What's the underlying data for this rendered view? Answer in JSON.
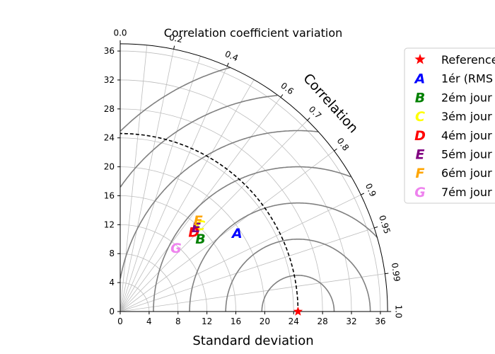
{
  "chart_data": {
    "type": "taylor-diagram",
    "title": "Correlation coefficient variation",
    "xlabel": "Standard deviation",
    "correlation_label": "Correlation",
    "std_range": [
      0,
      37
    ],
    "std_ticks": [
      0,
      4,
      8,
      12,
      16,
      20,
      24,
      28,
      32,
      36
    ],
    "correlation_ticks": [
      "0.0",
      "0.2",
      "0.4",
      "0.6",
      "0.7",
      "0.8",
      "0.9",
      "0.95",
      "0.99",
      "1.0"
    ],
    "rms_contours": [
      5,
      10,
      15,
      20,
      25,
      30,
      35
    ],
    "reference": {
      "label": "Reference",
      "std": 24.6,
      "correlation": 1.0,
      "color": "#ff0000",
      "marker": "star"
    },
    "points": [
      {
        "marker": "A",
        "label": "1ér (RMS",
        "std": 19.5,
        "correlation": 0.83,
        "color": "#0000ff"
      },
      {
        "marker": "B",
        "label": "2ém jour",
        "std": 15.0,
        "correlation": 0.74,
        "color": "#008000"
      },
      {
        "marker": "C",
        "label": "3ém jour",
        "std": 16.3,
        "correlation": 0.68,
        "color": "#ffff00"
      },
      {
        "marker": "D",
        "label": "4ém jour",
        "std": 15.0,
        "correlation": 0.68,
        "color": "#ff0000"
      },
      {
        "marker": "E",
        "label": "5ém jour",
        "std": 15.7,
        "correlation": 0.67,
        "color": "#800080"
      },
      {
        "marker": "F",
        "label": "6ém jour",
        "std": 16.6,
        "correlation": 0.65,
        "color": "#ffa500"
      },
      {
        "marker": "G",
        "label": "7ém jour",
        "std": 11.7,
        "correlation": 0.66,
        "color": "#ee82ee"
      }
    ],
    "legend_position": "right",
    "grid": true
  }
}
